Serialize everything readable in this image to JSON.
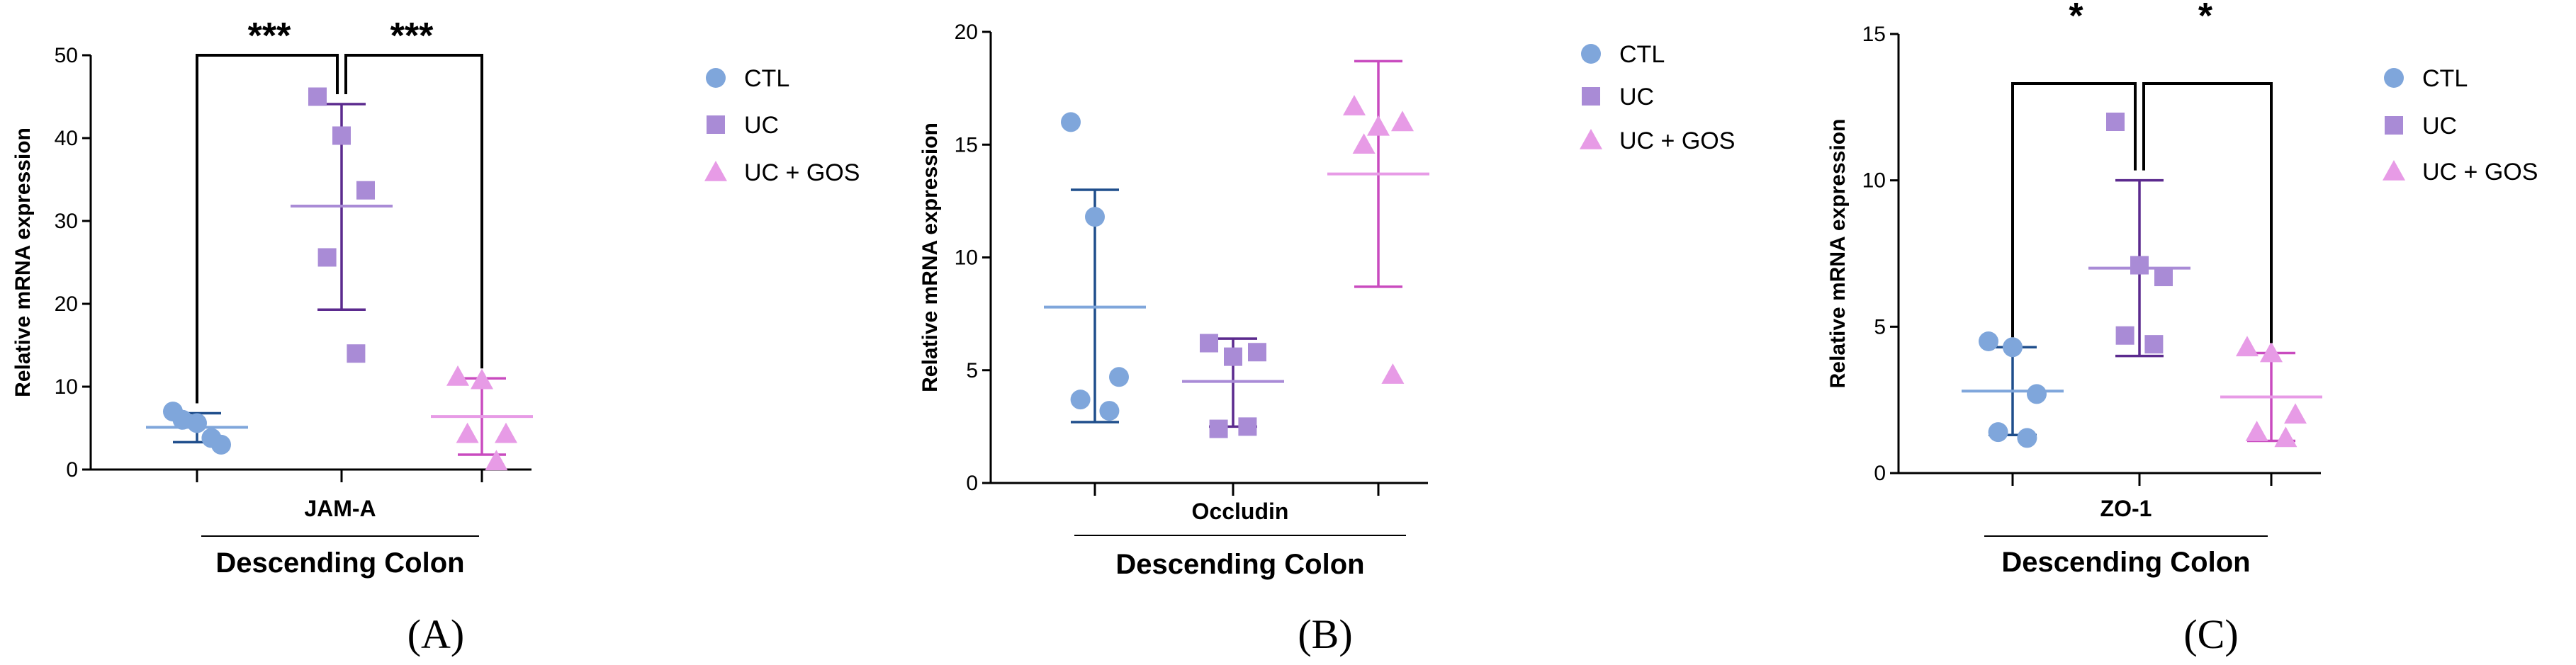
{
  "legend_labels": {
    "CTL": "CTL",
    "UC": "UC",
    "UCGOS": "UC + GOS"
  },
  "colors": {
    "CTL": {
      "point": "#7fa6db",
      "mean": "#7fa6db",
      "err": "#1f4e8c"
    },
    "UC": {
      "point": "#a98bd6",
      "mean": "#a98bd6",
      "err": "#5b2a8e"
    },
    "UCGOS": {
      "point": "#e79be6",
      "mean": "#e79be6",
      "err": "#c94bbf"
    }
  },
  "chart_data": [
    {
      "type": "scatter",
      "panel_label": "(A)",
      "gene": "JAM-A",
      "group_label": "Descending Colon",
      "ylabel": "Relative mRNA expression",
      "ylim": [
        0,
        50
      ],
      "yticks": [
        0,
        10,
        20,
        30,
        40,
        50
      ],
      "series": [
        {
          "name": "CTL",
          "values": [
            7.0,
            5.6,
            3.0,
            6.0,
            3.8
          ],
          "mean": 5.1,
          "sd_low": 3.3,
          "sd_high": 6.8
        },
        {
          "name": "UC",
          "values": [
            45.0,
            40.3,
            33.7,
            25.6,
            14.0
          ],
          "mean": 31.8,
          "sd_low": 19.3,
          "sd_high": 44.1
        },
        {
          "name": "UC + GOS",
          "values": [
            11.2,
            10.8,
            4.3,
            4.3,
            1.0
          ],
          "mean": 6.4,
          "sd_low": 1.8,
          "sd_high": 11.0
        }
      ],
      "significance": [
        {
          "from": 0,
          "to": 1,
          "label": "***"
        },
        {
          "from": 1,
          "to": 2,
          "label": "***"
        }
      ]
    },
    {
      "type": "scatter",
      "panel_label": "(B)",
      "gene": "Occludin",
      "group_label": "Descending Colon",
      "ylabel": "Relative mRNA expression",
      "ylim": [
        0,
        20
      ],
      "yticks": [
        0,
        5,
        10,
        15,
        20
      ],
      "series": [
        {
          "name": "CTL",
          "values": [
            16.0,
            11.8,
            4.7,
            3.7,
            3.2
          ],
          "mean": 7.8,
          "sd_low": 2.7,
          "sd_high": 13.0
        },
        {
          "name": "UC",
          "values": [
            6.2,
            5.6,
            5.8,
            2.4,
            2.5
          ],
          "mean": 4.5,
          "sd_low": 2.5,
          "sd_high": 6.4
        },
        {
          "name": "UC + GOS",
          "values": [
            16.7,
            15.8,
            16.0,
            15.0,
            4.8
          ],
          "mean": 13.7,
          "sd_low": 8.7,
          "sd_high": 18.7
        }
      ],
      "significance": []
    },
    {
      "type": "scatter",
      "panel_label": "(C)",
      "gene": "ZO-1",
      "group_label": "Descending Colon",
      "ylabel": "Relative mRNA expression",
      "ylim": [
        0,
        15
      ],
      "yticks": [
        0,
        5,
        10,
        15
      ],
      "series": [
        {
          "name": "CTL",
          "values": [
            4.5,
            4.3,
            2.7,
            1.4,
            1.2
          ],
          "mean": 2.8,
          "sd_low": 1.3,
          "sd_high": 4.3
        },
        {
          "name": "UC",
          "values": [
            12.0,
            7.1,
            6.7,
            4.7,
            4.4
          ],
          "mean": 7.0,
          "sd_low": 4.0,
          "sd_high": 10.0
        },
        {
          "name": "UC + GOS",
          "values": [
            4.3,
            4.1,
            2.0,
            1.4,
            1.2
          ],
          "mean": 2.6,
          "sd_low": 1.1,
          "sd_high": 4.1
        }
      ],
      "significance": [
        {
          "from": 0,
          "to": 1,
          "label": "*"
        },
        {
          "from": 1,
          "to": 2,
          "label": "*"
        }
      ]
    }
  ]
}
